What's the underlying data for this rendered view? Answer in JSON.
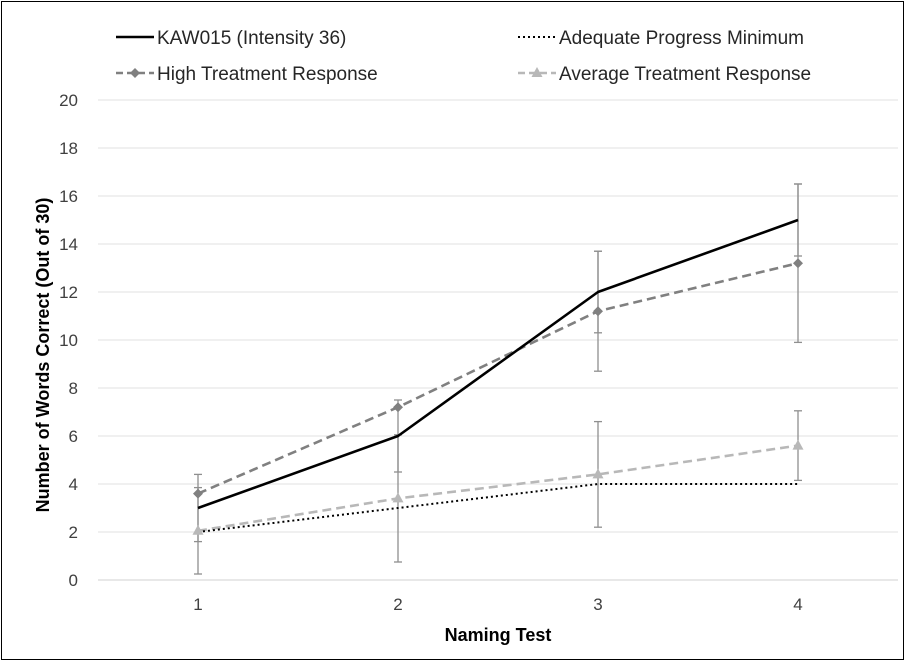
{
  "chart_data": {
    "type": "line",
    "xlabel": "Naming Test",
    "ylabel": "Number of Words Correct (Out of 30)",
    "x": [
      1,
      2,
      3,
      4
    ],
    "xlim": [
      0.5,
      4.5
    ],
    "ylim": [
      0,
      20
    ],
    "yticks": [
      0,
      2,
      4,
      6,
      8,
      10,
      12,
      14,
      16,
      18,
      20
    ],
    "grid": true,
    "legend_position": "top",
    "series": [
      {
        "name": "KAW015 (Intensity 36)",
        "values": [
          3,
          6,
          12,
          15
        ],
        "errors": [
          1.4,
          1.5,
          1.7,
          1.5
        ],
        "color": "#000000",
        "style": "solid",
        "marker": "none"
      },
      {
        "name": "Adequate Progress Minimum",
        "values": [
          2,
          3,
          4,
          4
        ],
        "color": "#000000",
        "style": "dotted",
        "marker": "none"
      },
      {
        "name": "High Treatment Response",
        "values": [
          3.6,
          7.2,
          11.2,
          13.2
        ],
        "errors": [
          null,
          null,
          2.5,
          3.3
        ],
        "color": "#808080",
        "style": "dashed",
        "marker": "diamond"
      },
      {
        "name": "Average Treatment Response",
        "values": [
          2.05,
          3.4,
          4.4,
          5.6
        ],
        "errors": [
          1.8,
          2.65,
          2.2,
          1.45
        ],
        "color": "#b8b8b8",
        "style": "dashed",
        "marker": "triangle"
      }
    ]
  }
}
